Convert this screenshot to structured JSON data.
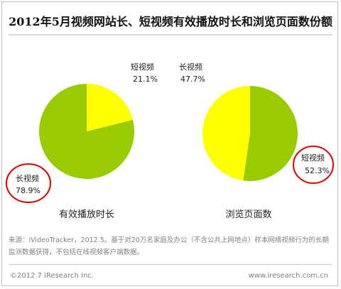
{
  "title": "2012年5月视频网站长、短视频有效播放时长和浏览页面数份额",
  "colors": {
    "long": "#99cc00",
    "short": "#ffff00",
    "highlight": "#e10000"
  },
  "chart_data": [
    {
      "type": "pie",
      "title": "有效播放时长",
      "slices": [
        {
          "label": "长视频",
          "pct_label": "78.9%",
          "value": 78.9,
          "color": "#99cc00",
          "highlighted": true
        },
        {
          "label": "短视频",
          "pct_label": "21.1%",
          "value": 21.1,
          "color": "#ffff00",
          "highlighted": false
        }
      ]
    },
    {
      "type": "pie",
      "title": "浏览页面数",
      "slices": [
        {
          "label": "长视频",
          "pct_label": "47.7%",
          "value": 47.7,
          "color": "#ffff00",
          "highlighted": false
        },
        {
          "label": "短视频",
          "pct_label": "52.3%",
          "value": 52.3,
          "color": "#99cc00",
          "highlighted": true
        }
      ]
    }
  ],
  "source_note": "来源：iVideoTracker，2012.5。基于对20万名家庭及办公（不含公共上网地点）样本网络视频行为的长期监测数据获得，不包括在线视频客户端数据。",
  "footer": {
    "copyright": "©2012.7 iResearch Inc.",
    "website": "www.iresearch.com.cn"
  }
}
